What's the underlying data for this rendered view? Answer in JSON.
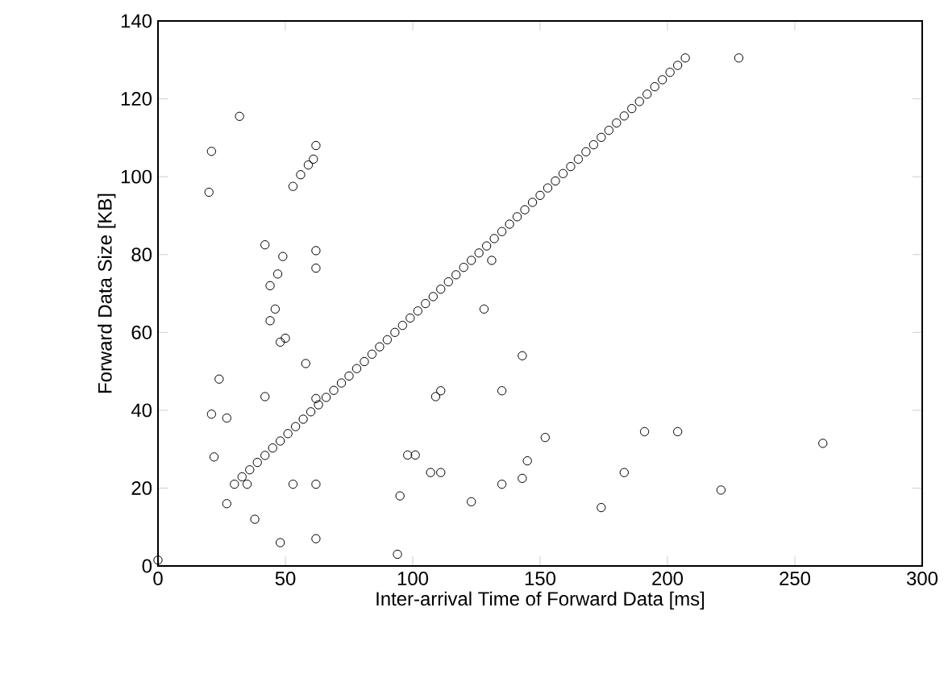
{
  "chart_data": {
    "type": "scatter",
    "xlabel": "Inter-arrival Time of Forward Data [ms]",
    "ylabel": "Forward Data Size [KB]",
    "xlim": [
      0,
      300
    ],
    "ylim": [
      0,
      140
    ],
    "xticks": [
      0,
      50,
      100,
      150,
      200,
      250,
      300
    ],
    "yticks": [
      0,
      20,
      40,
      60,
      80,
      100,
      120,
      140
    ],
    "marker": "circle",
    "grid": false,
    "series": [
      {
        "color": "#000000",
        "x": [
          0,
          20,
          21,
          21,
          22,
          24,
          27,
          27,
          32,
          35,
          38,
          42,
          42,
          44,
          44,
          46,
          47,
          48,
          48,
          49,
          50,
          53,
          53,
          56,
          58,
          59,
          61,
          62,
          62,
          62,
          62,
          62,
          62,
          94,
          95,
          98,
          101,
          107,
          109,
          111,
          111,
          123,
          128,
          131,
          135,
          135,
          143,
          143,
          145,
          152,
          174,
          183,
          191,
          204,
          221,
          228,
          261,
          30,
          33,
          36,
          39,
          42,
          45,
          48,
          51,
          54,
          57,
          60,
          63,
          66,
          69,
          72,
          75,
          78,
          81,
          84,
          87,
          90,
          93,
          96,
          99,
          102,
          105,
          108,
          111,
          114,
          117,
          120,
          123,
          126,
          129,
          132,
          135,
          138,
          141,
          144,
          147,
          150,
          153,
          156,
          159,
          162,
          165,
          168,
          171,
          174,
          177,
          180,
          183,
          186,
          189,
          192,
          195,
          198,
          201,
          204,
          207
        ],
        "values": [
          1.5,
          96,
          106.5,
          39,
          28,
          48,
          38,
          16,
          115.5,
          21,
          12,
          82.5,
          43.5,
          72,
          63,
          66,
          75,
          57.5,
          6,
          79.5,
          58.5,
          21,
          97.5,
          100.5,
          52,
          103,
          104.5,
          108,
          7,
          21,
          81,
          76.5,
          43,
          3,
          18,
          28.5,
          28.5,
          24,
          43.5,
          45,
          24,
          16.5,
          66,
          78.5,
          21,
          45,
          22.5,
          54,
          27,
          33,
          15,
          24,
          34.5,
          34.5,
          19.5,
          130.5,
          31.5,
          21,
          22.9,
          24.7,
          26.6,
          28.4,
          30.3,
          32.1,
          34,
          35.8,
          37.7,
          39.6,
          41.4,
          43.3,
          45.1,
          47,
          48.8,
          50.7,
          52.5,
          54.4,
          56.3,
          58.1,
          60,
          61.8,
          63.7,
          65.5,
          67.4,
          69.2,
          71.1,
          73,
          74.8,
          76.7,
          78.5,
          80.4,
          82.2,
          84.1,
          85.9,
          87.8,
          89.7,
          91.5,
          93.4,
          95.2,
          97.1,
          98.9,
          100.8,
          102.6,
          104.5,
          106.4,
          108.2,
          110.1,
          111.9,
          113.8,
          115.6,
          117.5,
          119.3,
          121.2,
          123.1,
          124.9,
          126.8,
          128.6,
          130.5
        ]
      }
    ]
  }
}
